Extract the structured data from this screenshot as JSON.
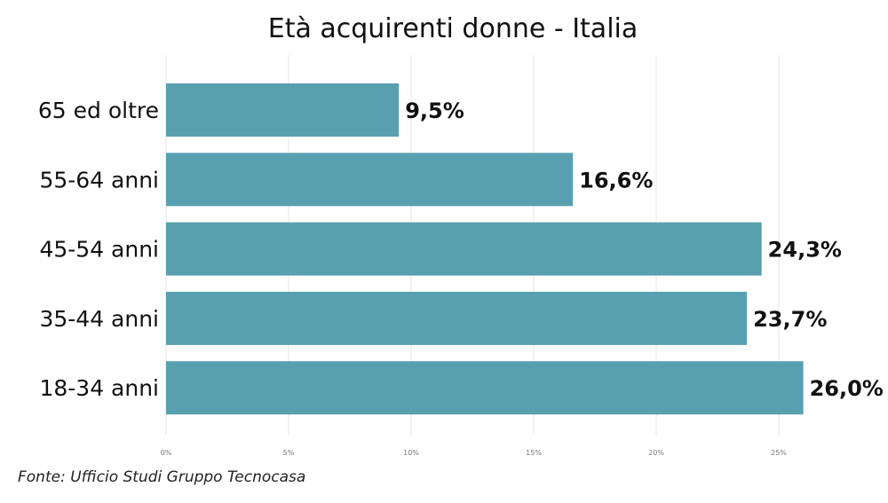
{
  "chart_data": {
    "type": "bar",
    "orientation": "horizontal",
    "title": "Età acquirenti donne - Italia",
    "categories": [
      "65 ed oltre",
      "55-64 anni",
      "45-54 anni",
      "35-44 anni",
      "18-34 anni"
    ],
    "values": [
      9.5,
      16.6,
      24.3,
      23.7,
      26.0
    ],
    "data_labels": [
      "9,5%",
      "16,6%",
      "24,3%",
      "23,7%",
      "26,0%"
    ],
    "x_ticks": [
      0,
      5,
      10,
      15,
      20,
      25
    ],
    "x_tick_labels": [
      "0%",
      "5%",
      "10%",
      "15%",
      "20%",
      "25%"
    ],
    "xlim": [
      0,
      26
    ],
    "grid": true,
    "bar_color": "#58A0B0"
  },
  "source": "Fonte: Ufficio Studi Gruppo Tecnocasa"
}
